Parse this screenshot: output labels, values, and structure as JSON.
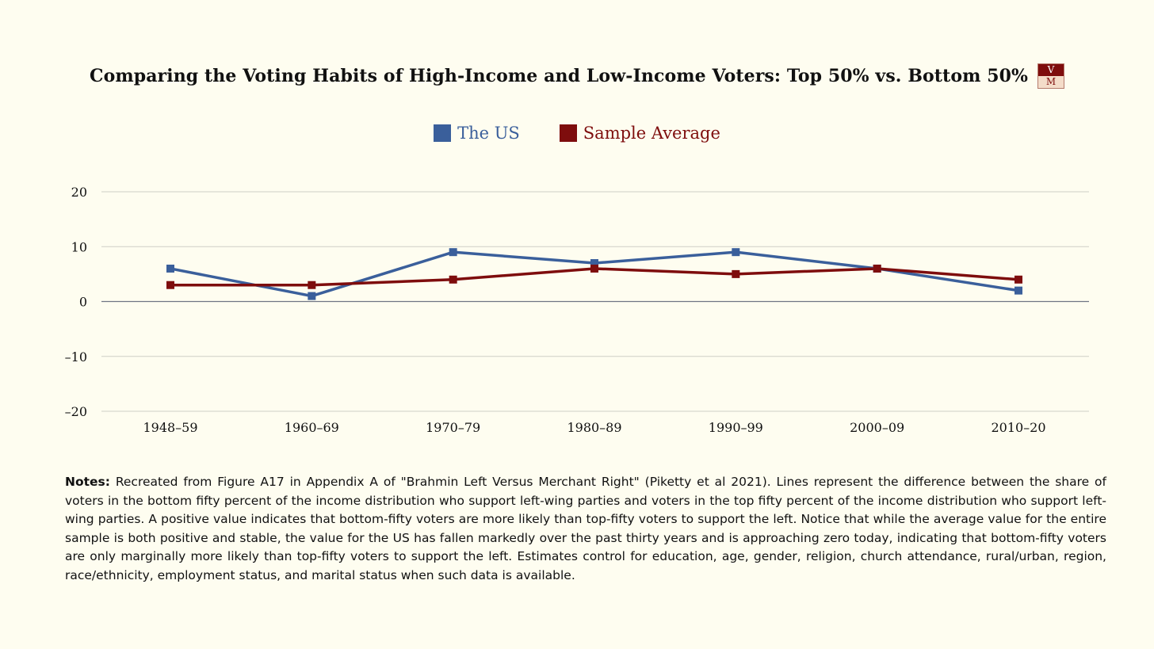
{
  "title": "Comparing the Voting Habits of High-Income and Low-Income Voters: Top 50% vs. Bottom 50%",
  "logo": {
    "top": "V",
    "bottom": "M"
  },
  "colors": {
    "us": "#3a5f9b",
    "sample": "#7e0d0d",
    "grid": "#cfcfc6",
    "zero": "#6f7584",
    "background": "#fefdf0"
  },
  "chart_data": {
    "type": "line",
    "categories": [
      "1948–59",
      "1960–69",
      "1970–79",
      "1980–89",
      "1990–99",
      "2000–09",
      "2010–20"
    ],
    "series": [
      {
        "name": "The US",
        "values": [
          6,
          1,
          9,
          7,
          9,
          6,
          2
        ]
      },
      {
        "name": "Sample Average",
        "values": [
          3,
          3,
          4,
          6,
          5,
          6,
          4
        ]
      }
    ],
    "yticks": [
      "20",
      "10",
      "0",
      "–10",
      "–20"
    ],
    "ylim": [
      -20,
      20
    ],
    "xlabel": "",
    "ylabel": "",
    "legend": "top-center",
    "grid": true
  },
  "notes": {
    "label": "Notes:",
    "text": " Recreated from Figure A17 in Appendix A of \"Brahmin Left Versus Merchant Right\" (Piketty et al 2021). Lines represent the difference between the share of voters in the bottom fifty percent of the income distribution who support left-wing parties and voters in the top fifty percent of the income distribution who support left-wing parties. A positive value indicates that bottom-fifty voters are more likely than top-fifty voters to support the left. Notice that while the average value for the entire sample is both positive and stable, the value for the US has fallen markedly over the past thirty years and is approaching zero today, indicating that bottom-fifty voters are only marginally more likely than top-fifty voters to support the left. Estimates control for education, age, gender, religion, church attendance, rural/urban, region, race/ethnicity, employment status, and marital status when such data is available."
  }
}
